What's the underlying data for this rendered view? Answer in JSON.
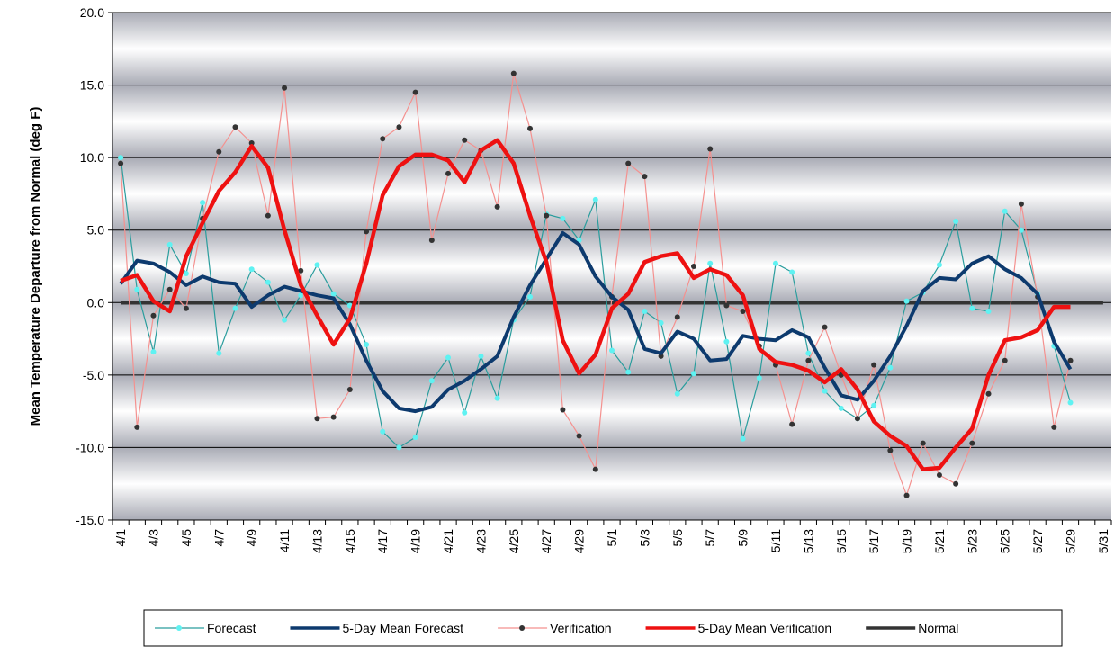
{
  "chart_data": {
    "type": "line",
    "y_label": "Mean Temperature Departure from Normal (deg F)",
    "categories": [
      "4/1",
      null,
      "4/3",
      null,
      "4/5",
      null,
      "4/7",
      null,
      "4/9",
      null,
      "4/11",
      null,
      "4/13",
      null,
      "4/15",
      null,
      "4/17",
      null,
      "4/19",
      null,
      "4/21",
      null,
      "4/23",
      null,
      "4/25",
      null,
      "4/27",
      null,
      "4/29",
      null,
      "5/1",
      null,
      "5/3",
      null,
      "5/5",
      null,
      "5/7",
      null,
      "5/9",
      null,
      "5/11",
      null,
      "5/13",
      null,
      "5/15",
      null,
      "5/17",
      null,
      "5/19",
      null,
      "5/21",
      null,
      "5/23",
      null,
      "5/25",
      null,
      "5/27",
      null,
      "5/29",
      null,
      "5/31"
    ],
    "ylim": [
      -15,
      20
    ],
    "yticks": [
      {
        "value": -15,
        "label": "-15.0"
      },
      {
        "value": -10,
        "label": "-10.0"
      },
      {
        "value": -5,
        "label": "-5.0"
      },
      {
        "value": 0,
        "label": "0.0"
      },
      {
        "value": 5,
        "label": "5.0"
      },
      {
        "value": 10,
        "label": "10.0"
      },
      {
        "value": 15,
        "label": "15.0"
      },
      {
        "value": 20,
        "label": "20.0"
      }
    ],
    "grid": true,
    "legend": "bottom",
    "series": [
      {
        "name": "Forecast",
        "color": "#2a9d9d",
        "marker_color": "#5ff2f2",
        "width": 1.2,
        "marker": true,
        "values": [
          10.0,
          0.9,
          -3.4,
          4.0,
          2.0,
          6.9,
          -3.5,
          -0.4,
          2.3,
          1.4,
          -1.2,
          0.5,
          2.6,
          0.6,
          -0.2,
          -2.9,
          -8.9,
          -10.0,
          -9.3,
          -5.4,
          -3.8,
          -7.6,
          -3.7,
          -6.6,
          -1.2,
          0.4,
          6.1,
          5.8,
          4.3,
          7.1,
          -3.3,
          -4.8,
          -0.6,
          -1.4,
          -6.3,
          -4.9,
          2.7,
          -2.7,
          -9.4,
          -5.2,
          2.7,
          2.1,
          -3.5,
          -6.1,
          -7.3,
          -8.0,
          -7.1,
          -4.5,
          0.1,
          0.7,
          2.6,
          5.6,
          -0.4,
          -0.6,
          6.3,
          5.0,
          0.6,
          -3.0,
          -6.9,
          null,
          null
        ]
      },
      {
        "name": "5-Day Mean Forecast",
        "color": "#0d3a6e",
        "width": 4,
        "marker": false,
        "values": [
          1.3,
          2.9,
          2.7,
          2.1,
          1.2,
          1.8,
          1.4,
          1.3,
          -0.3,
          0.5,
          1.1,
          0.8,
          0.5,
          0.3,
          -1.5,
          -4.0,
          -6.1,
          -7.3,
          -7.5,
          -7.2,
          -6.0,
          -5.4,
          -4.6,
          -3.7,
          -1.0,
          1.2,
          3.0,
          4.8,
          4.0,
          1.8,
          0.4,
          -0.5,
          -3.2,
          -3.5,
          -2.0,
          -2.5,
          -4.0,
          -3.9,
          -2.3,
          -2.5,
          -2.6,
          -1.9,
          -2.4,
          -4.5,
          -6.4,
          -6.7,
          -5.4,
          -3.7,
          -1.6,
          0.8,
          1.7,
          1.6,
          2.7,
          3.2,
          2.3,
          1.7,
          0.6,
          -2.7,
          -4.6,
          null,
          null
        ]
      },
      {
        "name": "Verification",
        "color": "#f4918f",
        "marker_color": "#333333",
        "width": 1.2,
        "marker": true,
        "values": [
          9.6,
          -8.6,
          -0.9,
          0.9,
          -0.4,
          5.8,
          10.4,
          12.1,
          11.0,
          6.0,
          14.8,
          2.2,
          -8.0,
          -7.9,
          -6.0,
          4.9,
          11.3,
          12.1,
          14.5,
          4.3,
          8.9,
          11.2,
          10.5,
          6.6,
          15.8,
          12.0,
          6.0,
          -7.4,
          -9.2,
          -11.5,
          0.4,
          9.6,
          8.7,
          -3.7,
          -1.0,
          2.5,
          10.6,
          -0.2,
          -0.6,
          -3.0,
          -4.3,
          -8.4,
          -4.0,
          -1.7,
          -5.0,
          -8.0,
          -4.3,
          -10.2,
          -13.3,
          -9.7,
          -11.9,
          -12.5,
          -9.7,
          -6.3,
          -4.0,
          6.8,
          0.4,
          -8.6,
          -4.0,
          null,
          null
        ]
      },
      {
        "name": "5-Day Mean Verification",
        "color": "#ee1111",
        "width": 4.5,
        "marker": false,
        "values": [
          1.5,
          1.9,
          0.1,
          -0.6,
          3.2,
          5.5,
          7.7,
          9.0,
          10.8,
          9.3,
          5.0,
          1.2,
          -0.9,
          -2.9,
          -1.1,
          2.7,
          7.4,
          9.4,
          10.2,
          10.2,
          9.8,
          8.3,
          10.5,
          11.2,
          9.6,
          6.0,
          2.8,
          -2.6,
          -4.9,
          -3.6,
          -0.4,
          0.6,
          2.8,
          3.2,
          3.4,
          1.7,
          2.3,
          1.9,
          0.5,
          -3.2,
          -4.1,
          -4.3,
          -4.7,
          -5.5,
          -4.6,
          -6.0,
          -8.2,
          -9.2,
          -9.9,
          -11.5,
          -11.4,
          -10.0,
          -8.7,
          -5.0,
          -2.6,
          -2.4,
          -1.9,
          -0.3,
          -0.3,
          null,
          null
        ]
      },
      {
        "name": "Normal",
        "color": "#333333",
        "width": 4.5,
        "marker": false,
        "values": [
          0,
          0,
          0,
          0,
          0,
          0,
          0,
          0,
          0,
          0,
          0,
          0,
          0,
          0,
          0,
          0,
          0,
          0,
          0,
          0,
          0,
          0,
          0,
          0,
          0,
          0,
          0,
          0,
          0,
          0,
          0,
          0,
          0,
          0,
          0,
          0,
          0,
          0,
          0,
          0,
          0,
          0,
          0,
          0,
          0,
          0,
          0,
          0,
          0,
          0,
          0,
          0,
          0,
          0,
          0,
          0,
          0,
          0,
          0,
          0,
          0
        ]
      }
    ]
  }
}
